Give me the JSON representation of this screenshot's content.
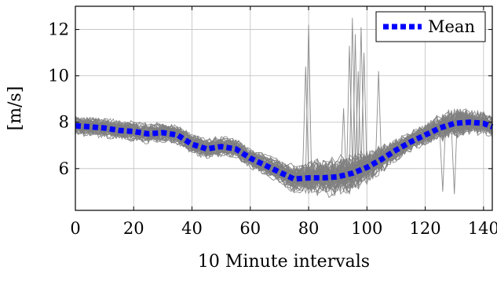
{
  "chart_data": {
    "type": "line",
    "title": "",
    "xlabel": "10 Minute intervals",
    "ylabel": "[m/s]",
    "xlim": [
      0,
      143
    ],
    "ylim": [
      4.2,
      13
    ],
    "x_ticks": [
      0,
      20,
      40,
      60,
      80,
      100,
      120,
      140
    ],
    "y_ticks": [
      6,
      8,
      10,
      12
    ],
    "grid": true,
    "legend": {
      "position": "top-right",
      "entries": [
        "Mean"
      ]
    },
    "colors": {
      "mean": "#0000ff",
      "realizations": "#808080"
    },
    "series": [
      {
        "name": "Mean",
        "style": "dotted",
        "x": [
          0,
          5,
          10,
          15,
          20,
          25,
          30,
          35,
          40,
          45,
          50,
          55,
          60,
          65,
          70,
          75,
          80,
          85,
          90,
          95,
          100,
          105,
          110,
          115,
          120,
          125,
          130,
          135,
          140,
          143
        ],
        "y": [
          7.85,
          7.8,
          7.75,
          7.65,
          7.6,
          7.5,
          7.55,
          7.45,
          7.05,
          6.85,
          6.95,
          6.85,
          6.45,
          6.15,
          5.85,
          5.55,
          5.6,
          5.6,
          5.65,
          5.8,
          6.05,
          6.4,
          6.8,
          7.15,
          7.45,
          7.75,
          7.95,
          8.0,
          7.95,
          7.8
        ]
      }
    ],
    "realizations": {
      "count": 60,
      "spikes": [
        {
          "x": 80,
          "y": 12.2
        },
        {
          "x": 95,
          "y": 12.5
        },
        {
          "x": 96,
          "y": 11.8
        },
        {
          "x": 98,
          "y": 12.1
        },
        {
          "x": 99,
          "y": 11.0
        },
        {
          "x": 94,
          "y": 11.3
        },
        {
          "x": 97,
          "y": 10.2
        },
        {
          "x": 104,
          "y": 10.2
        },
        {
          "x": 79,
          "y": 10.4
        },
        {
          "x": 126,
          "y": 5.0
        },
        {
          "x": 130,
          "y": 4.9
        },
        {
          "x": 92,
          "y": 8.6
        }
      ]
    }
  }
}
